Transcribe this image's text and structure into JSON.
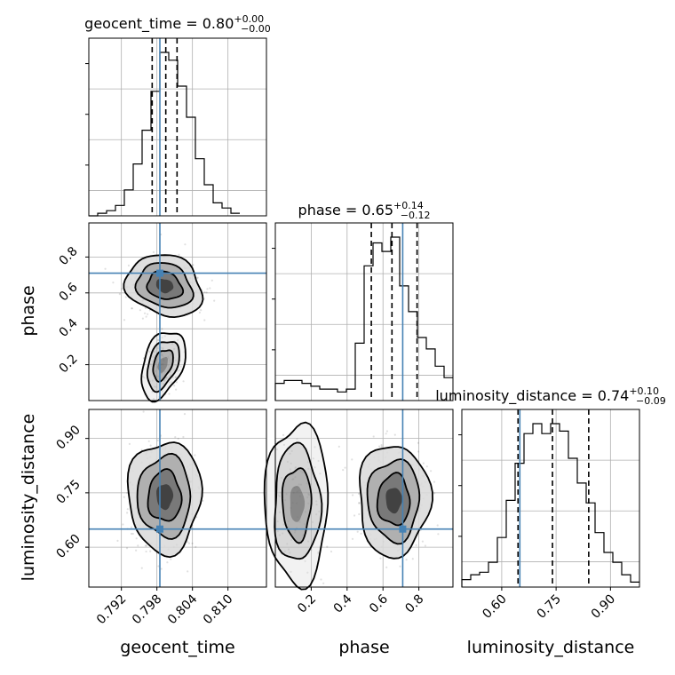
{
  "chart_data": {
    "type": "corner",
    "parameters": [
      "geocent_time",
      "phase",
      "luminosity_distance"
    ],
    "truths": {
      "geocent_time": 0.7985,
      "phase": 0.71,
      "luminosity_distance": 0.65
    },
    "quantiles": {
      "geocent_time": [
        0.7972,
        0.7995,
        0.8014
      ],
      "phase": [
        0.535,
        0.65,
        0.79
      ],
      "luminosity_distance": [
        0.645,
        0.74,
        0.84
      ]
    },
    "titles": {
      "geocent_time": {
        "label": "geocent_time",
        "median": "0.80",
        "plus": "+0.00",
        "minus": "−0.00"
      },
      "phase": {
        "label": "phase",
        "median": "0.65",
        "plus": "+0.14",
        "minus": "−0.12"
      },
      "luminosity_distance": {
        "label": "luminosity_distance",
        "median": "0.74",
        "plus": "+0.10",
        "minus": "−0.09"
      }
    },
    "axes": {
      "geocent_time": {
        "range": [
          0.7865,
          0.8165
        ],
        "ticks": [
          0.792,
          0.798,
          0.804,
          0.81
        ],
        "tick_labels": [
          "0.792",
          "0.798",
          "0.804",
          "0.810"
        ]
      },
      "phase": {
        "range": [
          0.0,
          0.99
        ],
        "ticks": [
          0.2,
          0.4,
          0.6,
          0.8
        ],
        "tick_labels": [
          "0.2",
          "0.4",
          "0.6",
          "0.8"
        ]
      },
      "luminosity_distance": {
        "range": [
          0.49,
          0.98
        ],
        "ticks": [
          0.6,
          0.75,
          0.9
        ],
        "tick_labels": [
          "0.60",
          "0.75",
          "0.90"
        ]
      }
    },
    "histograms": {
      "geocent_time": {
        "bins": [
          0.7865,
          0.788,
          0.7895,
          0.791,
          0.7925,
          0.794,
          0.7955,
          0.797,
          0.7985,
          0.8,
          0.8015,
          0.803,
          0.8045,
          0.806,
          0.8075,
          0.809,
          0.8105,
          0.812
        ],
        "counts": [
          0,
          1,
          2,
          4,
          10,
          20,
          33,
          48,
          63,
          60,
          50,
          38,
          22,
          12,
          5,
          3,
          1
        ]
      },
      "phase": {
        "bins": [
          0.0,
          0.0495,
          0.099,
          0.1485,
          0.198,
          0.2475,
          0.297,
          0.3465,
          0.396,
          0.4455,
          0.495,
          0.5445,
          0.594,
          0.6435,
          0.693,
          0.7425,
          0.792,
          0.8415,
          0.891,
          0.9405,
          0.99
        ],
        "counts": [
          6,
          7,
          7,
          6,
          5,
          4,
          4,
          3,
          4,
          20,
          47,
          55,
          52,
          57,
          40,
          31,
          22,
          18,
          12,
          8
        ]
      },
      "luminosity_distance": {
        "bins": [
          0.49,
          0.5145,
          0.539,
          0.5635,
          0.588,
          0.6125,
          0.637,
          0.6615,
          0.686,
          0.7105,
          0.735,
          0.7595,
          0.784,
          0.8085,
          0.833,
          0.8575,
          0.882,
          0.9065,
          0.931,
          0.9555,
          0.98
        ],
        "counts": [
          3,
          5,
          6,
          10,
          20,
          35,
          50,
          62,
          66,
          62,
          66,
          63,
          52,
          42,
          34,
          22,
          14,
          10,
          5,
          2
        ]
      }
    },
    "xlabels": [
      "geocent_time",
      "phase",
      "luminosity_distance"
    ],
    "ylabels": [
      "",
      "phase",
      "luminosity_distance"
    ],
    "grid": true
  }
}
